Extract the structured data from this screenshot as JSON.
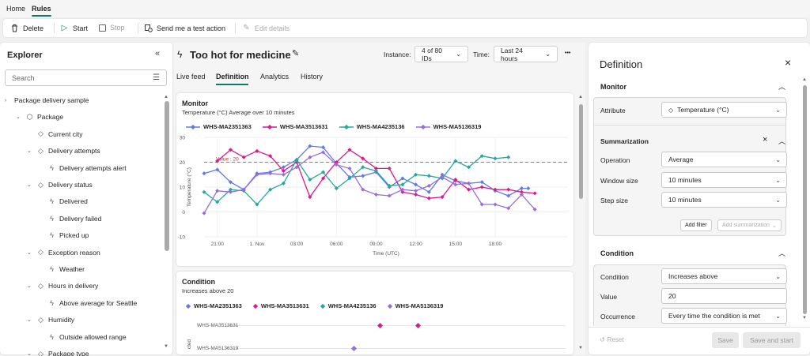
{
  "nav": {
    "home": "Home",
    "rules": "Rules"
  },
  "toolbar": {
    "delete": "Delete",
    "start": "Start",
    "stop": "Stop",
    "test_action": "Send me a test action",
    "edit_details": "Edit details"
  },
  "explorer": {
    "title": "Explorer",
    "search_placeholder": "Search",
    "tree": [
      {
        "label": "Package delivery sample",
        "chev": "›",
        "icon": ""
      },
      {
        "label": "Package",
        "chev": "⌄",
        "icon": "⬡"
      },
      {
        "label": "Current city",
        "chev": "",
        "icon": "◇"
      },
      {
        "label": "Delivery attempts",
        "chev": "⌄",
        "icon": "◇"
      },
      {
        "label": "Delivery attempts alert",
        "chev": "",
        "icon": "ϟ"
      },
      {
        "label": "Delivery status",
        "chev": "⌄",
        "icon": "◇"
      },
      {
        "label": "Delivered",
        "chev": "",
        "icon": "ϟ"
      },
      {
        "label": "Delivery failed",
        "chev": "",
        "icon": "ϟ"
      },
      {
        "label": "Picked up",
        "chev": "",
        "icon": "ϟ"
      },
      {
        "label": "Exception reason",
        "chev": "⌄",
        "icon": "◇"
      },
      {
        "label": "Weather",
        "chev": "",
        "icon": "ϟ"
      },
      {
        "label": "Hours in delivery",
        "chev": "⌄",
        "icon": "◇"
      },
      {
        "label": "Above average for Seattle",
        "chev": "",
        "icon": "ϟ"
      },
      {
        "label": "Humidity",
        "chev": "⌄",
        "icon": "◇"
      },
      {
        "label": "Outside allowed range",
        "chev": "",
        "icon": "ϟ"
      },
      {
        "label": "Package type",
        "chev": "⌄",
        "icon": "◇"
      }
    ]
  },
  "rule": {
    "title": "Too hot for medicine",
    "instance_label": "Instance:",
    "instance_value": "4 of 80 IDs",
    "time_label": "Time:",
    "time_value": "Last 24 hours",
    "more": "•••",
    "tabs": [
      "Live feed",
      "Definition",
      "Analytics",
      "History"
    ]
  },
  "monitor_card": {
    "title": "Monitor",
    "subtitle": "Temperature (°C) Average over 10 minutes"
  },
  "condition_card": {
    "title": "Condition",
    "subtitle": "Increases above 20",
    "rows": [
      "WHS-MA3513631",
      "WHS-MA5136319"
    ],
    "axis_label": "cted"
  },
  "chart_data": {
    "type": "line",
    "xlabel": "Time (UTC)",
    "ylabel": "Temperature (°C)",
    "ylim": [
      -10,
      30
    ],
    "x": [
      0,
      1,
      2,
      3,
      4,
      5,
      6,
      7,
      8,
      9,
      10,
      11,
      12,
      13,
      14,
      15,
      16,
      17,
      18,
      19,
      20,
      21,
      22,
      23,
      24,
      25,
      26,
      27,
      28,
      29,
      30,
      31,
      32,
      33,
      34,
      35,
      36,
      37,
      38,
      39,
      40,
      41,
      42,
      43,
      44,
      45,
      46,
      47,
      48,
      49,
      50,
      51,
      52,
      53,
      54,
      55
    ],
    "x_ticks": [
      {
        "x": 2,
        "label": "21:00"
      },
      {
        "x": 8,
        "label": "1. Nov"
      },
      {
        "x": 14,
        "label": "03:00"
      },
      {
        "x": 20,
        "label": "06:00"
      },
      {
        "x": 26,
        "label": "09:00"
      },
      {
        "x": 32,
        "label": "12:00"
      },
      {
        "x": 38,
        "label": "15:00"
      },
      {
        "x": 44,
        "label": "18:00"
      }
    ],
    "y_ticks": [
      -10,
      0,
      10,
      20,
      30
    ],
    "threshold": {
      "value": 20,
      "label": "Value : 20"
    },
    "series": [
      {
        "name": "WHS-MA2351363",
        "color": "#6478e6",
        "points": [
          [
            0,
            15.5
          ],
          [
            2,
            17
          ],
          [
            4,
            12
          ],
          [
            6,
            9
          ],
          [
            8,
            15.5
          ],
          [
            10,
            16
          ],
          [
            12,
            18
          ],
          [
            14,
            21
          ],
          [
            16,
            26.5
          ],
          [
            18,
            26
          ],
          [
            20,
            19.5
          ],
          [
            22,
            14
          ],
          [
            24,
            14.5
          ],
          [
            26,
            16
          ],
          [
            28,
            10
          ],
          [
            30,
            13.5
          ],
          [
            32,
            11
          ],
          [
            34,
            8
          ],
          [
            36,
            15
          ],
          [
            38,
            12.5
          ],
          [
            40,
            11.5
          ],
          [
            42,
            12
          ],
          [
            44,
            8.5
          ],
          [
            46,
            6.5
          ],
          [
            48,
            9.5
          ],
          [
            49,
            9.5
          ]
        ]
      },
      {
        "name": "WHS-MA3513631",
        "color": "#d91b8c",
        "points": [
          [
            2,
            20.5
          ],
          [
            4,
            25
          ],
          [
            6,
            22
          ],
          [
            8,
            24.5
          ],
          [
            10,
            22.5
          ],
          [
            12,
            16.5
          ],
          [
            14,
            20
          ],
          [
            16,
            6
          ],
          [
            18,
            13.5
          ],
          [
            20,
            20
          ],
          [
            22,
            25
          ],
          [
            24,
            21.5
          ],
          [
            26,
            17.5
          ],
          [
            28,
            17.5
          ],
          [
            30,
            8
          ],
          [
            32,
            7
          ],
          [
            34,
            5.5
          ],
          [
            36,
            6
          ],
          [
            38,
            13
          ],
          [
            40,
            9
          ],
          [
            42,
            10
          ],
          [
            44,
            9
          ],
          [
            46,
            9
          ],
          [
            48,
            8
          ],
          [
            50,
            7.5
          ]
        ]
      },
      {
        "name": "WHS-MA4235136",
        "color": "#28a89b",
        "points": [
          [
            0,
            8
          ],
          [
            2,
            4
          ],
          [
            4,
            9
          ],
          [
            6,
            8.5
          ],
          [
            8,
            3
          ],
          [
            10,
            9
          ],
          [
            12,
            11.5
          ],
          [
            14,
            21
          ],
          [
            16,
            13
          ],
          [
            18,
            16
          ],
          [
            20,
            9.5
          ],
          [
            22,
            13.5
          ],
          [
            24,
            18
          ],
          [
            26,
            16.5
          ],
          [
            28,
            10.5
          ],
          [
            30,
            11
          ],
          [
            32,
            15
          ],
          [
            34,
            14.5
          ],
          [
            36,
            13.5
          ],
          [
            38,
            20.5
          ],
          [
            40,
            18
          ],
          [
            42,
            22.5
          ],
          [
            44,
            21.5
          ],
          [
            46,
            22
          ]
        ]
      },
      {
        "name": "WHS-MA5136319",
        "color": "#9670d6",
        "points": [
          [
            0,
            -0.5
          ],
          [
            2,
            8.5
          ],
          [
            4,
            8
          ],
          [
            6,
            9
          ],
          [
            8,
            15
          ],
          [
            10,
            15.5
          ],
          [
            12,
            15
          ],
          [
            14,
            18
          ],
          [
            16,
            22
          ],
          [
            18,
            24
          ],
          [
            20,
            19
          ],
          [
            22,
            17.5
          ],
          [
            24,
            9
          ],
          [
            26,
            7
          ],
          [
            28,
            6.5
          ],
          [
            30,
            9
          ],
          [
            32,
            8.5
          ],
          [
            34,
            10.5
          ],
          [
            36,
            14
          ],
          [
            38,
            11
          ],
          [
            40,
            11.5
          ],
          [
            42,
            3
          ],
          [
            44,
            3
          ],
          [
            46,
            1.5
          ],
          [
            48,
            7
          ],
          [
            50,
            1
          ]
        ]
      }
    ]
  },
  "definition": {
    "title": "Definition",
    "monitor": "Monitor",
    "attribute_label": "Attribute",
    "attribute_value": "Temperature (°C)",
    "summarization": "Summarization",
    "operation_label": "Operation",
    "operation_value": "Average",
    "window_label": "Window size",
    "window_value": "10 minutes",
    "step_label": "Step size",
    "step_value": "10 minutes",
    "add_filter": "Add filter",
    "add_summarization": "Add summarization",
    "condition": "Condition",
    "condition_label": "Condition",
    "condition_value": "Increases above",
    "value_label": "Value",
    "value_value": "20",
    "occurrence_label": "Occurrence",
    "occurrence_value": "Every time the condition is met",
    "reset": "Reset",
    "save": "Save",
    "save_start": "Save and start"
  }
}
